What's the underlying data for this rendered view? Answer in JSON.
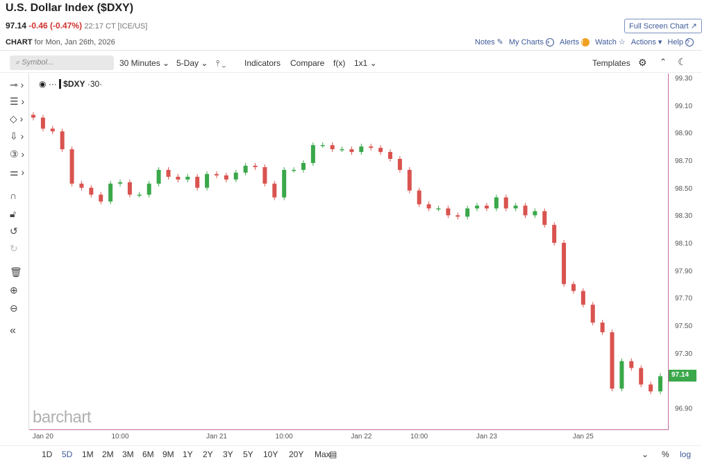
{
  "header": {
    "title": "U.S. Dollar Index ($DXY)",
    "last": "97.14",
    "change": "-0.46 (-0.47%)",
    "time": "22:17 CT [ICE/US]",
    "chart_label": "CHART",
    "chart_for": "for Mon, Jan 26th, 2026",
    "full_screen": "Full Screen Chart ↗"
  },
  "links": {
    "notes": "Notes",
    "my_charts": "My Charts",
    "alerts": "Alerts",
    "watch": "Watch",
    "actions": "Actions",
    "help": "Help"
  },
  "toolbar": {
    "search_placeholder": "Symbol...",
    "interval": "30 Minutes ⌄",
    "period": "5-Day ⌄",
    "chart_type": "⫯ ⌄",
    "indicators": "Indicators",
    "compare": "Compare",
    "fx": "f(x)",
    "layout": "1x1 ⌄",
    "templates": "Templates"
  },
  "legend": {
    "symbol": "$DXY",
    "interval": "·30·"
  },
  "watermark": "barchart",
  "price_tag": "97.14",
  "colors": {
    "up": "#3aa84a",
    "down": "#d9534f",
    "accent": "#3d5a99"
  },
  "range_buttons": [
    "1D",
    "5D",
    "1M",
    "2M",
    "3M",
    "6M",
    "9M",
    "1Y",
    "2Y",
    "3Y",
    "5Y",
    "10Y",
    "20Y",
    "Max"
  ],
  "active_range": "5D",
  "bottom": {
    "percent": "%",
    "log": "log"
  },
  "chart_data": {
    "type": "candlestick",
    "symbol": "$DXY",
    "ylim": [
      96.8,
      99.35
    ],
    "y_ticks": [
      "99.30",
      "99.10",
      "98.90",
      "98.70",
      "98.50",
      "98.30",
      "98.10",
      "97.90",
      "97.70",
      "97.50",
      "97.30",
      "96.90"
    ],
    "x_ticks": [
      {
        "label": "Jan 20",
        "index": 1
      },
      {
        "label": "10:00",
        "index": 9
      },
      {
        "label": "Jan 21",
        "index": 19
      },
      {
        "label": "10:00",
        "index": 26
      },
      {
        "label": "Jan 22",
        "index": 34
      },
      {
        "label": "10:00",
        "index": 40
      },
      {
        "label": "Jan 23",
        "index": 47
      },
      {
        "label": "Jan 25",
        "index": 57
      }
    ],
    "open_first": 99.04,
    "closes": [
      99.02,
      98.94,
      98.92,
      98.79,
      98.54,
      98.51,
      98.46,
      98.41,
      98.54,
      98.55,
      98.46,
      98.46,
      98.54,
      98.64,
      98.59,
      98.57,
      98.59,
      98.51,
      98.61,
      98.6,
      98.57,
      98.62,
      98.67,
      98.66,
      98.54,
      98.44,
      98.64,
      98.64,
      98.69,
      98.82,
      98.82,
      98.79,
      98.79,
      98.77,
      98.81,
      98.8,
      98.77,
      98.72,
      98.64,
      98.49,
      98.39,
      98.36,
      98.36,
      98.31,
      98.3,
      98.36,
      98.38,
      98.36,
      98.44,
      98.36,
      98.38,
      98.31,
      98.34,
      98.24,
      98.11,
      97.81,
      97.76,
      97.66,
      97.53,
      97.46,
      97.05,
      97.25,
      97.2,
      97.08,
      97.03,
      97.14
    ]
  }
}
